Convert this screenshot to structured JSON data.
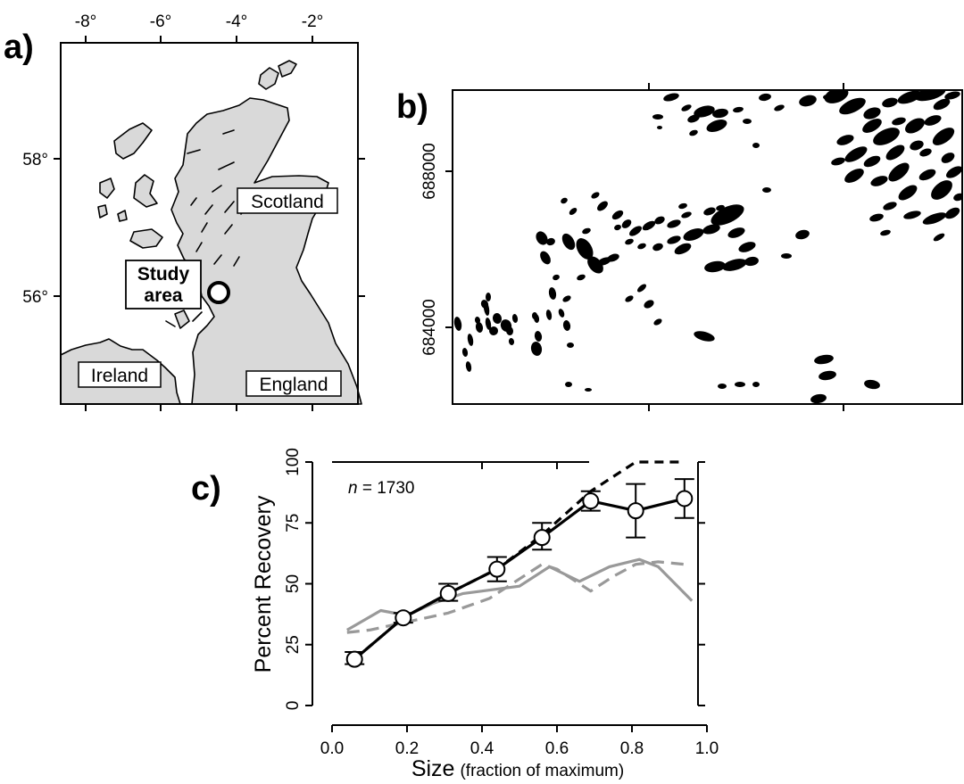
{
  "panels": {
    "a": {
      "label": "a)",
      "lon_ticks": [
        "-8°",
        "-6°",
        "-4°",
        "-2°"
      ],
      "lat_ticks": [
        "58°",
        "56°"
      ],
      "places": {
        "scotland": "Scotland",
        "ireland": "Ireland",
        "england": "England",
        "study_line1": "Study",
        "study_line2": "area"
      },
      "land_color": "#d9d9d9"
    },
    "b": {
      "label": "b)",
      "y_ticks": [
        "688000",
        "684000"
      ],
      "patch_color": "#000000"
    },
    "c": {
      "label": "c)",
      "annotation_n": "n",
      "annotation_value": " = 1730"
    }
  },
  "chart_data": {
    "type": "line",
    "xlabel": "Size",
    "xlabel_sub": "(fraction of maximum)",
    "ylabel": "Percent Recovery",
    "xlim": [
      0.0,
      1.0
    ],
    "ylim": [
      0,
      100
    ],
    "x_ticks": [
      "0.0",
      "0.2",
      "0.4",
      "0.6",
      "0.8",
      "1.0"
    ],
    "y_ticks": [
      "0",
      "25",
      "50",
      "75",
      "100"
    ],
    "sample_size": 1730,
    "series": [
      {
        "style": "black-solid-points-errorbars",
        "color": "#000000",
        "x": [
          0.06,
          0.19,
          0.31,
          0.44,
          0.56,
          0.69,
          0.81,
          0.94
        ],
        "y": [
          19,
          36,
          46,
          56,
          69,
          84,
          80,
          85
        ],
        "err_low": [
          17,
          34,
          43,
          51,
          64,
          80,
          69,
          77
        ],
        "err_high": [
          22,
          38,
          50,
          61,
          75,
          88,
          91,
          93
        ]
      },
      {
        "style": "black-dashed",
        "color": "#000000",
        "x": [
          0.06,
          0.19,
          0.31,
          0.44,
          0.56,
          0.69,
          0.81,
          0.94
        ],
        "y": [
          19,
          36,
          46,
          56,
          70,
          88,
          100,
          100
        ]
      },
      {
        "style": "gray-solid",
        "color": "#999999",
        "x": [
          0.04,
          0.13,
          0.2,
          0.27,
          0.35,
          0.5,
          0.58,
          0.66,
          0.74,
          0.82,
          0.87,
          0.96
        ],
        "y": [
          31,
          39,
          37,
          42,
          46,
          49,
          57,
          51,
          57,
          60,
          57,
          43
        ]
      },
      {
        "style": "gray-dashed",
        "color": "#999999",
        "x": [
          0.04,
          0.1,
          0.19,
          0.31,
          0.42,
          0.56,
          0.6,
          0.69,
          0.75,
          0.81,
          0.87,
          0.94
        ],
        "y": [
          30,
          31,
          34,
          38,
          44,
          58,
          56,
          47,
          53,
          58,
          59,
          58
        ]
      }
    ]
  }
}
